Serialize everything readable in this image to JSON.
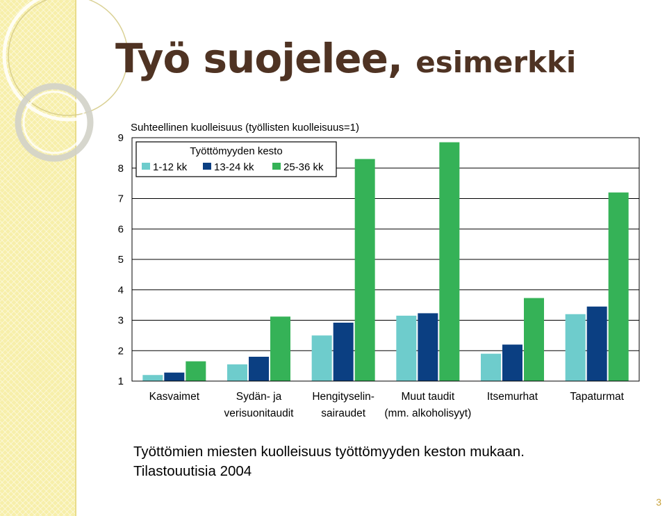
{
  "slide": {
    "title_main": "Työ suojelee,",
    "title_sub": "esimerkki",
    "caption_line1": "Työttömien miesten kuolleisuus työttömyyden keston mukaan.",
    "caption_line2": "Tilastouutisia 2004",
    "page_number": "3"
  },
  "chart_data": {
    "type": "bar",
    "title": "Suhteellinen kuolleisuus (työllisten kuolleisuus=1)",
    "categories": [
      [
        "Kasvaimet"
      ],
      [
        "Sydän- ja",
        "verisuonitaudit"
      ],
      [
        "Hengityselin-",
        "sairaudet"
      ],
      [
        "Muut taudit",
        "(mm. alkoholisyyt)"
      ],
      [
        "Itsemurhat"
      ],
      [
        "Tapaturmat"
      ]
    ],
    "legend": {
      "title": "Työttömyyden kesto",
      "placement": "top-left"
    },
    "series": [
      {
        "name": "1-12 kk",
        "color": "#6ecccc",
        "values": [
          1.2,
          1.55,
          2.5,
          3.15,
          1.9,
          3.2
        ]
      },
      {
        "name": "13-24 kk",
        "color": "#0b3f82",
        "values": [
          1.28,
          1.8,
          2.92,
          3.23,
          2.2,
          3.45
        ]
      },
      {
        "name": "25-36 kk",
        "color": "#35b257",
        "values": [
          1.65,
          3.12,
          8.3,
          8.85,
          3.73,
          7.2
        ]
      }
    ],
    "ylim": [
      1,
      9
    ],
    "yticks": [
      1,
      2,
      3,
      4,
      5,
      6,
      7,
      8,
      9
    ],
    "grid": true
  }
}
